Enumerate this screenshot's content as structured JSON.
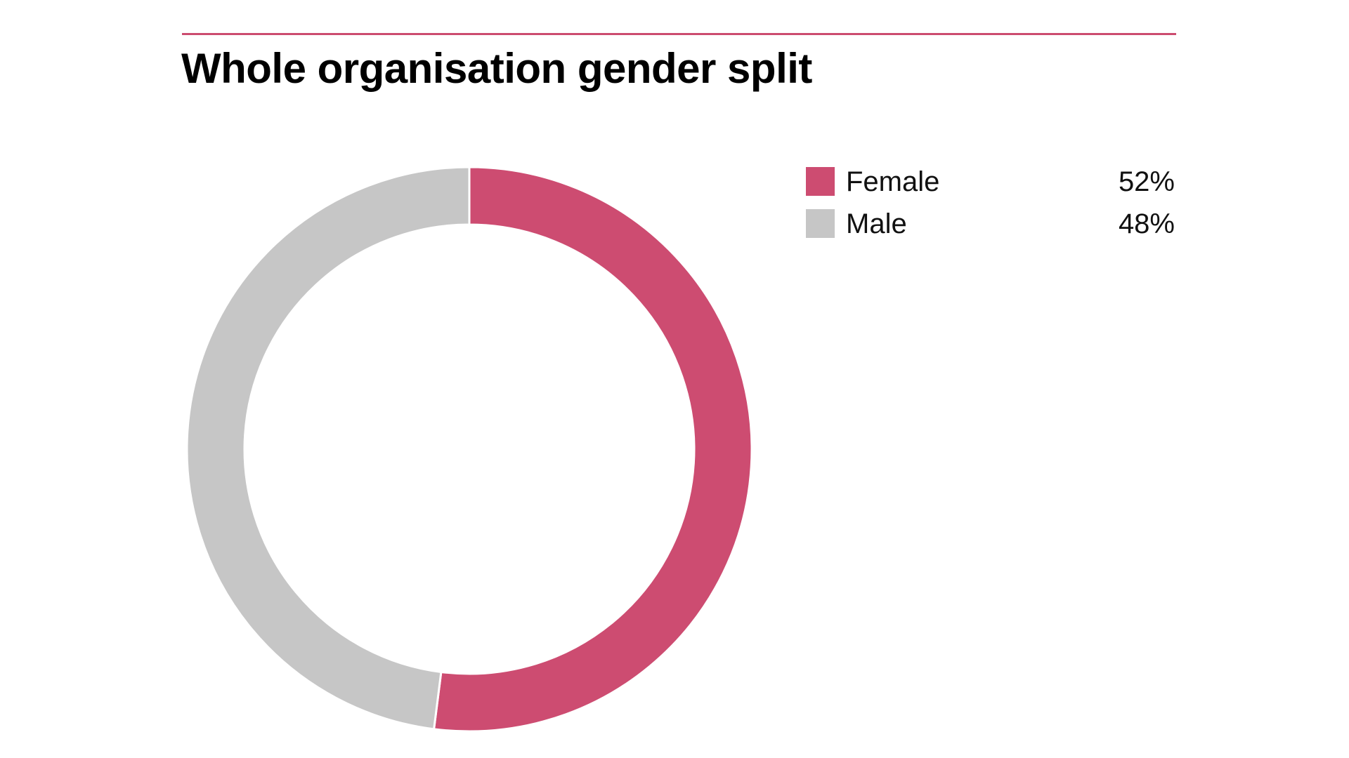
{
  "title": "Whole organisation gender split",
  "colors": {
    "accent_rule": "#cc4c6f",
    "female": "#cd4c71",
    "male": "#c6c6c6",
    "separator": "#ffffff"
  },
  "chart_data": {
    "type": "pie",
    "variant": "donut",
    "title": "Whole organisation gender split",
    "legend_position": "right",
    "start_angle": "top",
    "direction": "clockwise",
    "slices": [
      {
        "label": "Female",
        "value": 52,
        "display": "52%",
        "color": "#cd4c71"
      },
      {
        "label": "Male",
        "value": 48,
        "display": "48%",
        "color": "#c6c6c6"
      }
    ]
  }
}
